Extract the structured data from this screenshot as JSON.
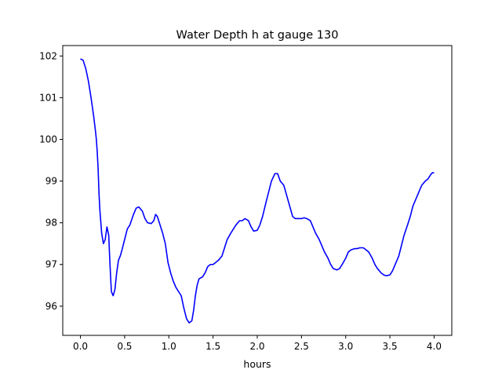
{
  "chart_data": {
    "type": "line",
    "title": "Water Depth h at gauge 130",
    "xlabel": "hours",
    "ylabel": "",
    "xlim": [
      -0.2,
      4.2
    ],
    "ylim": [
      95.3,
      102.25
    ],
    "xticks": [
      0.0,
      0.5,
      1.0,
      1.5,
      2.0,
      2.5,
      3.0,
      3.5,
      4.0
    ],
    "xtick_labels": [
      "0.0",
      "0.5",
      "1.0",
      "1.5",
      "2.0",
      "2.5",
      "3.0",
      "3.5",
      "4.0"
    ],
    "yticks": [
      96,
      97,
      98,
      99,
      100,
      101,
      102
    ],
    "ytick_labels": [
      "96",
      "97",
      "98",
      "99",
      "100",
      "101",
      "102"
    ],
    "grid": false,
    "series": [
      {
        "color": "#0000ff",
        "x": [
          0.0,
          0.03,
          0.06,
          0.09,
          0.12,
          0.15,
          0.17,
          0.18,
          0.19,
          0.2,
          0.21,
          0.22,
          0.24,
          0.26,
          0.28,
          0.3,
          0.32,
          0.33,
          0.34,
          0.35,
          0.37,
          0.39,
          0.41,
          0.43,
          0.45,
          0.47,
          0.5,
          0.53,
          0.56,
          0.6,
          0.63,
          0.66,
          0.7,
          0.73,
          0.76,
          0.8,
          0.83,
          0.85,
          0.87,
          0.9,
          0.93,
          0.96,
          0.99,
          1.02,
          1.05,
          1.08,
          1.11,
          1.14,
          1.17,
          1.2,
          1.23,
          1.26,
          1.28,
          1.3,
          1.32,
          1.34,
          1.36,
          1.38,
          1.41,
          1.44,
          1.47,
          1.5,
          1.53,
          1.56,
          1.6,
          1.63,
          1.66,
          1.7,
          1.73,
          1.76,
          1.8,
          1.83,
          1.86,
          1.9,
          1.93,
          1.96,
          2.0,
          2.03,
          2.06,
          2.1,
          2.13,
          2.16,
          2.2,
          2.23,
          2.26,
          2.28,
          2.3,
          2.32,
          2.34,
          2.36,
          2.38,
          2.4,
          2.43,
          2.46,
          2.5,
          2.53,
          2.56,
          2.6,
          2.63,
          2.66,
          2.7,
          2.73,
          2.76,
          2.8,
          2.83,
          2.86,
          2.9,
          2.93,
          2.96,
          3.0,
          3.03,
          3.06,
          3.1,
          3.13,
          3.16,
          3.2,
          3.23,
          3.26,
          3.3,
          3.33,
          3.36,
          3.4,
          3.43,
          3.46,
          3.5,
          3.53,
          3.56,
          3.6,
          3.63,
          3.66,
          3.7,
          3.73,
          3.76,
          3.8,
          3.83,
          3.86,
          3.9,
          3.93,
          3.96,
          3.98,
          4.0
        ],
        "y": [
          101.93,
          101.9,
          101.7,
          101.4,
          101.0,
          100.55,
          100.2,
          100.0,
          99.7,
          99.3,
          98.7,
          98.3,
          97.75,
          97.5,
          97.6,
          97.9,
          97.7,
          97.2,
          96.75,
          96.35,
          96.25,
          96.4,
          96.8,
          97.1,
          97.2,
          97.35,
          97.6,
          97.85,
          97.95,
          98.2,
          98.35,
          98.38,
          98.28,
          98.1,
          98.0,
          97.98,
          98.05,
          98.2,
          98.15,
          97.95,
          97.75,
          97.5,
          97.05,
          96.8,
          96.6,
          96.45,
          96.35,
          96.25,
          95.95,
          95.7,
          95.6,
          95.65,
          95.9,
          96.25,
          96.5,
          96.65,
          96.68,
          96.7,
          96.8,
          96.95,
          97.0,
          97.0,
          97.05,
          97.1,
          97.2,
          97.4,
          97.6,
          97.75,
          97.85,
          97.95,
          98.05,
          98.05,
          98.1,
          98.05,
          97.9,
          97.8,
          97.82,
          97.95,
          98.15,
          98.5,
          98.75,
          99.0,
          99.18,
          99.18,
          99.0,
          98.95,
          98.9,
          98.75,
          98.6,
          98.45,
          98.3,
          98.15,
          98.1,
          98.1,
          98.1,
          98.12,
          98.1,
          98.05,
          97.9,
          97.75,
          97.6,
          97.45,
          97.3,
          97.15,
          97.0,
          96.9,
          96.87,
          96.9,
          97.0,
          97.15,
          97.3,
          97.35,
          97.38,
          97.38,
          97.4,
          97.4,
          97.35,
          97.3,
          97.15,
          97.0,
          96.9,
          96.8,
          96.75,
          96.73,
          96.75,
          96.85,
          97.0,
          97.2,
          97.45,
          97.7,
          97.95,
          98.15,
          98.4,
          98.6,
          98.75,
          98.9,
          99.0,
          99.05,
          99.15,
          99.2,
          99.2
        ]
      }
    ]
  }
}
